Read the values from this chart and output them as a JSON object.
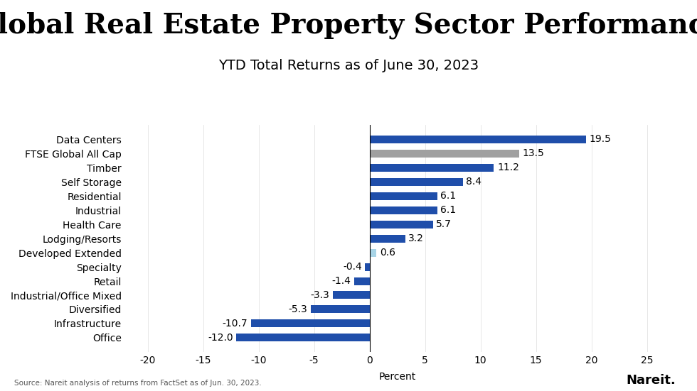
{
  "title": "Global Real Estate Property Sector Performance",
  "subtitle": "YTD Total Returns as of June 30, 2023",
  "xlabel": "Percent",
  "source": "Source: Nareit analysis of returns from FactSet as of Jun. 30, 2023.",
  "categories": [
    "Office",
    "Infrastructure",
    "Diversified",
    "Industrial/Office Mixed",
    "Retail",
    "Specialty",
    "Developed Extended",
    "Lodging/Resorts",
    "Health Care",
    "Industrial",
    "Residential",
    "Self Storage",
    "Timber",
    "FTSE Global All Cap",
    "Data Centers"
  ],
  "values": [
    -12.0,
    -10.7,
    -5.3,
    -3.3,
    -1.4,
    -0.4,
    0.6,
    3.2,
    5.7,
    6.1,
    6.1,
    8.4,
    11.2,
    13.5,
    19.5
  ],
  "bar_colors": [
    "#1f4eaa",
    "#1f4eaa",
    "#1f4eaa",
    "#1f4eaa",
    "#1f4eaa",
    "#1f4eaa",
    "#a8d4e6",
    "#1f4eaa",
    "#1f4eaa",
    "#1f4eaa",
    "#1f4eaa",
    "#1f4eaa",
    "#1f4eaa",
    "#a0a0a0",
    "#1f4eaa"
  ],
  "xlim": [
    -22,
    27
  ],
  "xticks": [
    -20,
    -15,
    -10,
    -5,
    0,
    5,
    10,
    15,
    20,
    25
  ],
  "background_color": "#ffffff",
  "title_fontsize": 28,
  "subtitle_fontsize": 14,
  "label_fontsize": 10,
  "tick_fontsize": 10,
  "bar_height": 0.55,
  "nareit_text": "Nareit.",
  "nareit_dot_color": "#1f4eaa"
}
